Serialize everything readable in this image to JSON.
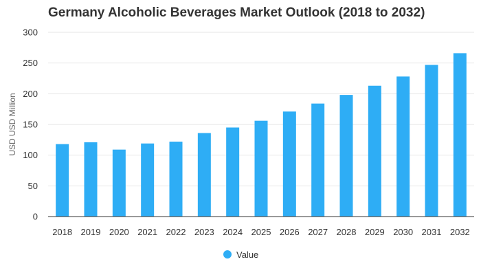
{
  "colors": {
    "bar": "#2EADF5",
    "grid": "#E6E6E6",
    "axis": "#333333"
  },
  "chart_data": {
    "type": "bar",
    "title": "Germany Alcoholic Beverages Market Outlook (2018 to 2032)",
    "xlabel": "",
    "ylabel": "USD USD Million",
    "ylim": [
      0,
      300
    ],
    "yticks": [
      0,
      50,
      100,
      150,
      200,
      250,
      300
    ],
    "grid": true,
    "legend_position": "bottom",
    "categories": [
      "2018",
      "2019",
      "2020",
      "2021",
      "2022",
      "2023",
      "2024",
      "2025",
      "2026",
      "2027",
      "2028",
      "2029",
      "2030",
      "2031",
      "2032"
    ],
    "series": [
      {
        "name": "Value",
        "values": [
          118,
          121,
          109,
          119,
          122,
          136,
          145,
          156,
          171,
          184,
          198,
          213,
          228,
          247,
          266
        ]
      }
    ]
  }
}
